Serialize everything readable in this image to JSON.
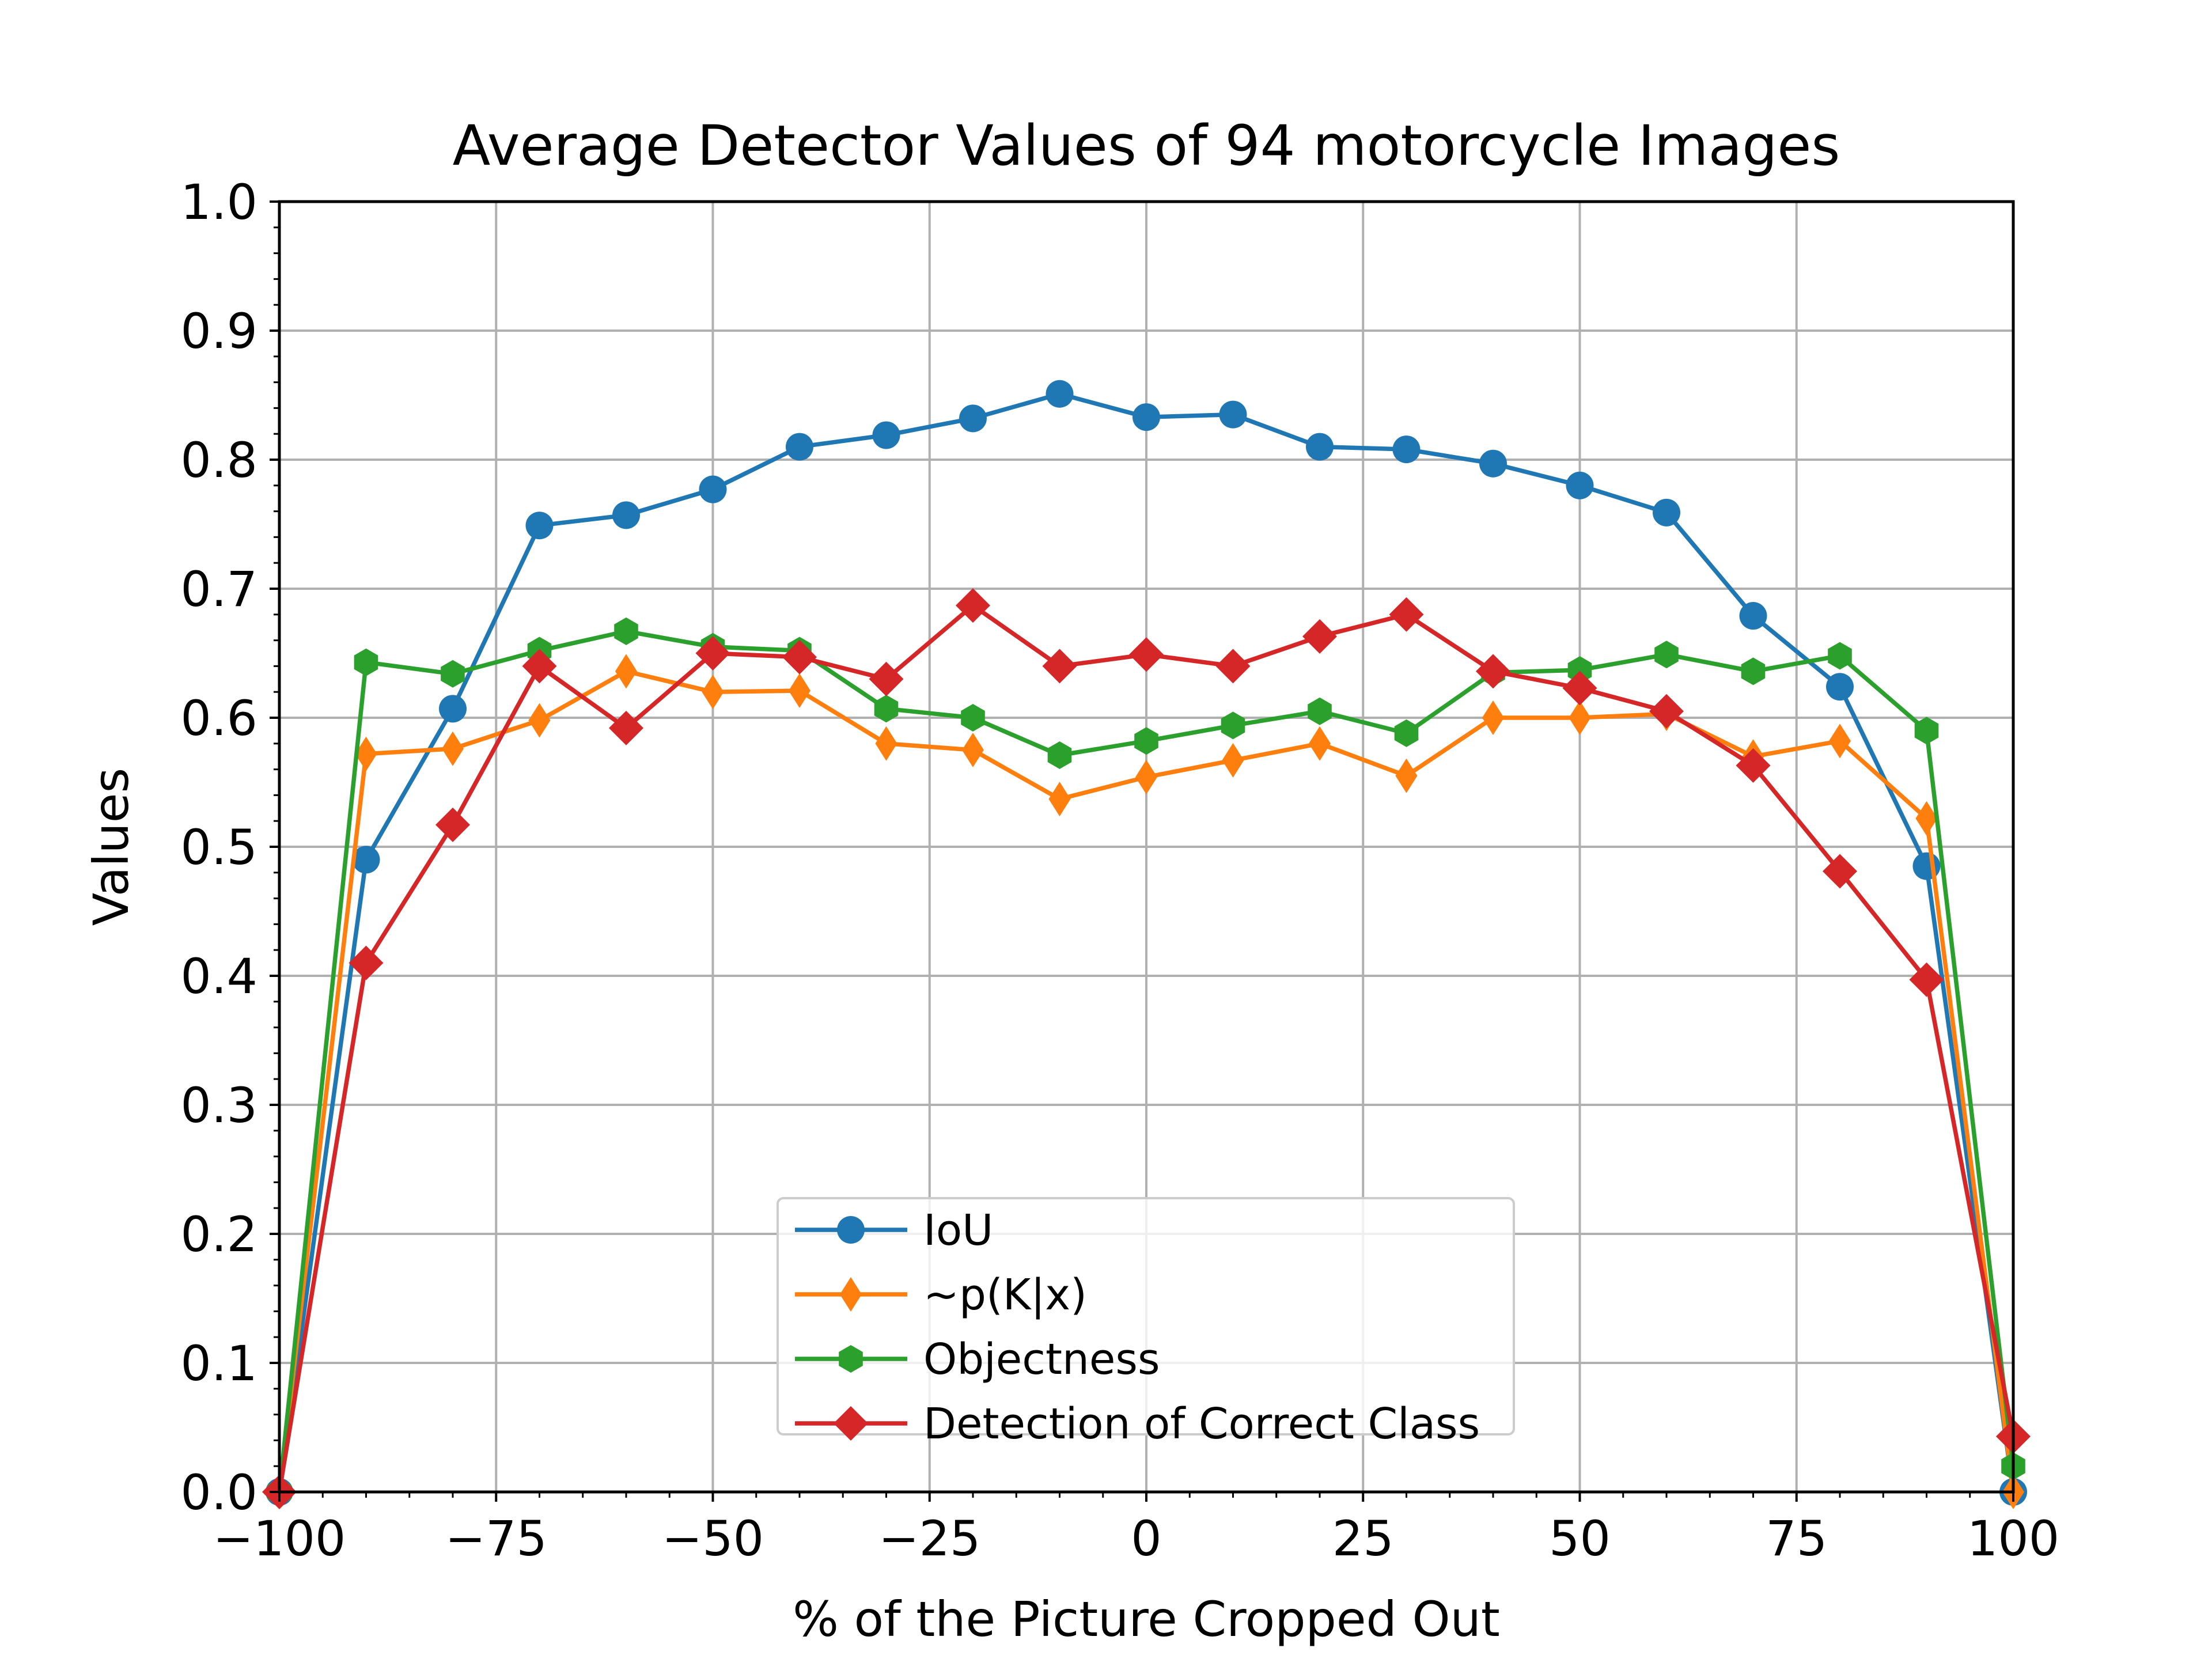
{
  "chart_data": {
    "type": "line",
    "title": "Average Detector Values of 94 motorcycle Images",
    "xlabel": "% of the Picture Cropped Out",
    "ylabel": "Values",
    "xlim": [
      -100,
      100
    ],
    "ylim": [
      0.0,
      1.0
    ],
    "xticks": [
      -100,
      -75,
      -50,
      -25,
      0,
      25,
      50,
      75,
      100
    ],
    "xtick_labels": [
      "−100",
      "−75",
      "−50",
      "−25",
      "0",
      "25",
      "50",
      "75",
      "100"
    ],
    "yticks": [
      0.0,
      0.1,
      0.2,
      0.3,
      0.4,
      0.5,
      0.6,
      0.7,
      0.8,
      0.9,
      1.0
    ],
    "ytick_labels": [
      "0.0",
      "0.1",
      "0.2",
      "0.3",
      "0.4",
      "0.5",
      "0.6",
      "0.7",
      "0.8",
      "0.9",
      "1.0"
    ],
    "grid": true,
    "legend_position": "lower center",
    "x": [
      -100,
      -90,
      -80,
      -70,
      -60,
      -50,
      -40,
      -30,
      -20,
      -10,
      0,
      10,
      20,
      30,
      40,
      50,
      60,
      70,
      80,
      90,
      100
    ],
    "series": [
      {
        "name": "IoU",
        "color": "#1f77b4",
        "marker": "circle",
        "values": [
          0.0,
          0.49,
          0.607,
          0.749,
          0.757,
          0.777,
          0.81,
          0.819,
          0.832,
          0.851,
          0.833,
          0.835,
          0.81,
          0.808,
          0.797,
          0.78,
          0.759,
          0.679,
          0.624,
          0.485,
          0.0
        ]
      },
      {
        "name": "~p(K|x)",
        "color": "#ff7f0e",
        "marker": "thin_diamond",
        "values": [
          0.0,
          0.572,
          0.576,
          0.598,
          0.636,
          0.62,
          0.621,
          0.58,
          0.575,
          0.537,
          0.554,
          0.567,
          0.58,
          0.555,
          0.6,
          0.6,
          0.603,
          0.57,
          0.582,
          0.522,
          0.0
        ]
      },
      {
        "name": "Objectness",
        "color": "#2ca02c",
        "marker": "hexagon",
        "values": [
          0.0,
          0.643,
          0.634,
          0.652,
          0.667,
          0.655,
          0.652,
          0.607,
          0.6,
          0.571,
          0.582,
          0.594,
          0.605,
          0.588,
          0.635,
          0.637,
          0.649,
          0.636,
          0.648,
          0.59,
          0.02
        ]
      },
      {
        "name": "Detection of Correct Class",
        "color": "#d62728",
        "marker": "diamond",
        "values": [
          0.0,
          0.41,
          0.517,
          0.64,
          0.592,
          0.65,
          0.647,
          0.63,
          0.687,
          0.64,
          0.649,
          0.64,
          0.663,
          0.68,
          0.636,
          0.623,
          0.605,
          0.563,
          0.481,
          0.397,
          0.043
        ]
      }
    ]
  }
}
